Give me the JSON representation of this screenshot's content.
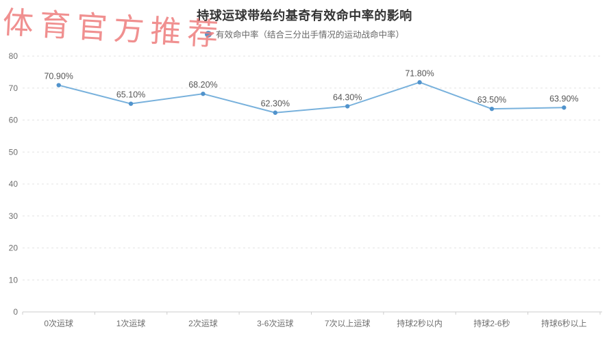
{
  "watermark": {
    "text": "体育官方推荐",
    "color": "#ee7d7d"
  },
  "chart_data": {
    "type": "line",
    "title": "持球运球带给约基奇有效命中率的影响",
    "legend": "有效命中率（结合三分出手情况的运动战命中率）",
    "categories": [
      "0次运球",
      "1次运球",
      "2次运球",
      "3-6次运球",
      "7次以上运球",
      "持球2秒以内",
      "持球2-6秒",
      "持球6秒以上"
    ],
    "values": [
      70.9,
      65.1,
      68.2,
      62.3,
      64.3,
      71.8,
      63.5,
      63.9
    ],
    "point_labels": [
      "70.90%",
      "65.10%",
      "68.20%",
      "62.30%",
      "64.30%",
      "71.80%",
      "63.50%",
      "63.90%"
    ],
    "xlabel": "",
    "ylabel": "",
    "ylim": [
      0,
      80
    ],
    "y_ticks": [
      0,
      10,
      20,
      30,
      40,
      50,
      60,
      70,
      80
    ],
    "grid": "horizontal-dashed",
    "legend_position": "top-center",
    "line_color": "#78b1dc",
    "marker_color": "#5193cc",
    "grid_color": "#e3e3e3",
    "axis_color": "#cccccc",
    "label_color": "#555555",
    "tick_label_color": "#6e6e6e"
  }
}
